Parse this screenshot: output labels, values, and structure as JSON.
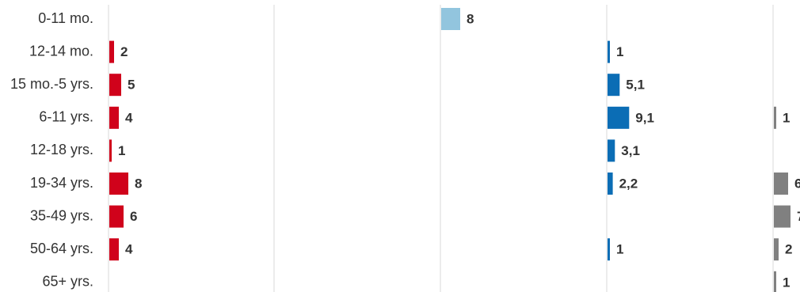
{
  "chart_data": {
    "type": "bar",
    "categories": [
      "0-11 mo.",
      "12-14 mo.",
      "15 mo.-5 yrs.",
      "6-11 yrs.",
      "12-18 yrs.",
      "19-34 yrs.",
      "35-49 yrs.",
      "50-64 yrs.",
      "65+ yrs."
    ],
    "panels": [
      {
        "color": "#d0021b",
        "values": [
          null,
          2,
          5,
          4,
          1,
          8,
          6,
          4,
          null
        ],
        "labels": [
          "",
          "2",
          "5",
          "4",
          "1",
          "8",
          "6",
          "4",
          ""
        ]
      },
      {
        "color": "#92c5de",
        "values": [
          8,
          null,
          null,
          null,
          null,
          null,
          null,
          null,
          null
        ],
        "labels": [
          "8",
          "",
          "",
          "",
          "",
          "",
          "",
          "",
          ""
        ]
      },
      {
        "color": "#0b6db5",
        "values": [
          null,
          1,
          5.1,
          9.1,
          3.1,
          2.2,
          null,
          1,
          null
        ],
        "labels": [
          "",
          "1",
          "5,1",
          "9,1",
          "3,1",
          "2,2",
          "",
          "1",
          ""
        ]
      },
      {
        "color": "#808080",
        "values": [
          null,
          null,
          null,
          1,
          null,
          6,
          7,
          2,
          1
        ],
        "labels": [
          "",
          "",
          "",
          "1",
          "",
          "6",
          "7",
          "2",
          "1"
        ]
      }
    ],
    "grid": true,
    "legend": "none"
  }
}
